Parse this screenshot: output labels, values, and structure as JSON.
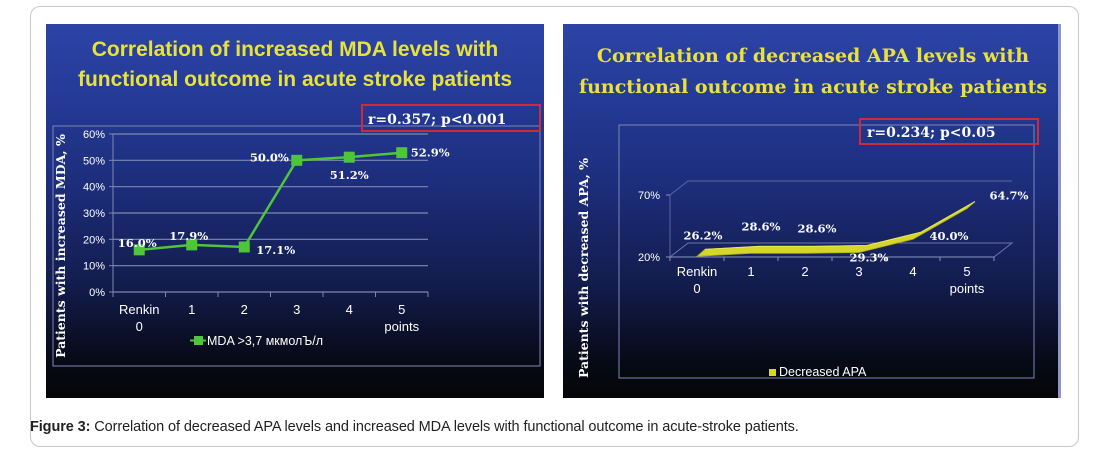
{
  "figure": {
    "caption_label": "Figure 3:",
    "caption_text": " Correlation of decreased APA levels and increased MDA levels with functional outcome in acute-stroke patients."
  },
  "chart_data": [
    {
      "type": "line",
      "title_line1": "Correlation of increased MDA levels with",
      "title_line2": "functional outcome in acute stroke patients",
      "stats": "r=0.357; p<0.001",
      "ylabel": "Patients with increased MDA, %",
      "xlabel": "",
      "categories": [
        "Renkin\n0",
        "1",
        "2",
        "3",
        "4",
        "5\npoints"
      ],
      "category_lines": [
        [
          "Renkin",
          "0"
        ],
        [
          "1"
        ],
        [
          "2"
        ],
        [
          "3"
        ],
        [
          "4"
        ],
        [
          "5",
          "points"
        ]
      ],
      "yticks": [
        "0%",
        "10%",
        "20%",
        "30%",
        "40%",
        "50%",
        "60%"
      ],
      "ylim": [
        0,
        60
      ],
      "grid": true,
      "legend_position": "bottom",
      "series": [
        {
          "name": "MDA >3,7 мкмолЪ/л",
          "color": "#4fc63a",
          "values": [
            16.0,
            17.9,
            17.1,
            50.0,
            51.2,
            52.9
          ],
          "labels": [
            "16.0%",
            "17.9%",
            "17.1%",
            "50.0%",
            "51.2%",
            "52.9%"
          ]
        }
      ],
      "colors": {
        "title": "#e8e23a",
        "stats_border": "#d02a3a",
        "text": "#ffffff"
      }
    },
    {
      "type": "line",
      "style": "3d-ribbon",
      "title_line1": "Correlation of decreased APA levels with",
      "title_line2": "functional outcome in acute stroke patients",
      "stats": "r=0.234; p<0.05",
      "ylabel": "Patients with decreased APA, %",
      "xlabel": "",
      "categories": [
        "Renkin\n0",
        "1",
        "2",
        "3",
        "4",
        "5\npoints"
      ],
      "category_lines": [
        [
          "Renkin",
          "0"
        ],
        [
          "1"
        ],
        [
          "2"
        ],
        [
          "3"
        ],
        [
          "4"
        ],
        [
          "5",
          "points"
        ]
      ],
      "yticks": [
        "20%",
        "70%"
      ],
      "ylim": [
        20,
        70
      ],
      "grid": false,
      "legend_position": "bottom",
      "series": [
        {
          "name": "Decreased APA",
          "color": "#d6d629",
          "values": [
            26.2,
            28.6,
            28.6,
            29.3,
            40.0,
            64.7
          ],
          "labels": [
            "26.2%",
            "28.6%",
            "28.6%",
            "29.3%",
            "40.0%",
            "64.7%"
          ]
        }
      ],
      "colors": {
        "title": "#e8e23a",
        "stats_border": "#d02a3a",
        "text": "#ffffff"
      }
    }
  ]
}
